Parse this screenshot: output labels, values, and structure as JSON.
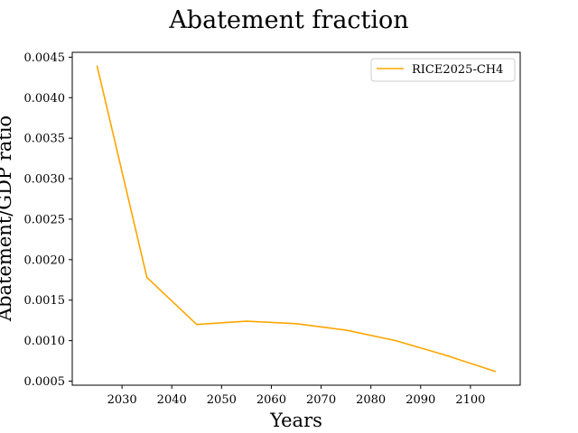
{
  "chart_data": {
    "type": "line",
    "title": "Abatement fraction",
    "xlabel": "Years",
    "ylabel": "Abatement/GDP ratio",
    "xlim": [
      2020,
      2110
    ],
    "ylim": [
      0.00045,
      0.00456
    ],
    "x_ticks": [
      2030,
      2040,
      2050,
      2060,
      2070,
      2080,
      2090,
      2100
    ],
    "x_tick_labels": [
      "2030",
      "2040",
      "2050",
      "2060",
      "2070",
      "2080",
      "2090",
      "2100"
    ],
    "y_ticks": [
      0.0005,
      0.001,
      0.0015,
      0.002,
      0.0025,
      0.003,
      0.0035,
      0.004,
      0.0045
    ],
    "y_tick_labels": [
      "0.0005",
      "0.0010",
      "0.0015",
      "0.0020",
      "0.0025",
      "0.0030",
      "0.0035",
      "0.0040",
      "0.0045"
    ],
    "grid": false,
    "legend_position": "top-right",
    "series": [
      {
        "name": "RICE2025-CH4",
        "color": "#ffa500",
        "x": [
          2025,
          2035,
          2045,
          2055,
          2065,
          2075,
          2085,
          2095,
          2105
        ],
        "y": [
          0.00439,
          0.00178,
          0.0012,
          0.00124,
          0.00121,
          0.00113,
          0.001,
          0.00082,
          0.00062
        ]
      }
    ]
  }
}
